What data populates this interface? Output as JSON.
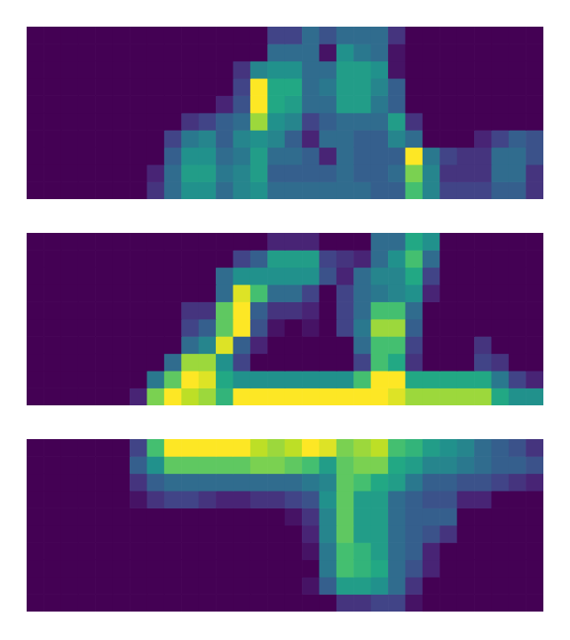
{
  "chart_data": [
    {
      "type": "heatmap",
      "color": "viridis",
      "grid": false,
      "tick_labels": false,
      "cells": [
        [
          0,
          0,
          0,
          0,
          0,
          0,
          0,
          0,
          0,
          0,
          0,
          0,
          0,
          0,
          0.2,
          0.2,
          0.35,
          0.25,
          0.35,
          0.35,
          0.35,
          0.15,
          0,
          0,
          0,
          0,
          0,
          0,
          0,
          0
        ],
        [
          0,
          0,
          0,
          0,
          0,
          0,
          0,
          0,
          0,
          0,
          0,
          0,
          0,
          0,
          0.35,
          0.35,
          0.35,
          0.05,
          0.5,
          0.4,
          0.35,
          0.05,
          0,
          0,
          0,
          0,
          0,
          0,
          0,
          0
        ],
        [
          0,
          0,
          0,
          0,
          0,
          0,
          0,
          0,
          0,
          0,
          0,
          0,
          0.15,
          0.45,
          0.5,
          0.5,
          0.35,
          0.35,
          0.55,
          0.55,
          0.5,
          0.05,
          0,
          0,
          0,
          0,
          0,
          0,
          0,
          0
        ],
        [
          0,
          0,
          0,
          0,
          0,
          0,
          0,
          0,
          0,
          0,
          0,
          0,
          0.2,
          1,
          0.6,
          0.6,
          0.35,
          0.4,
          0.55,
          0.55,
          0.45,
          0.3,
          0,
          0,
          0,
          0,
          0,
          0,
          0,
          0
        ],
        [
          0,
          0,
          0,
          0,
          0,
          0,
          0,
          0,
          0,
          0,
          0,
          0.1,
          0.25,
          1,
          0.6,
          0.55,
          0.35,
          0.35,
          0.55,
          0.55,
          0.4,
          0.3,
          0,
          0,
          0,
          0,
          0,
          0,
          0,
          0
        ],
        [
          0,
          0,
          0,
          0,
          0,
          0,
          0,
          0,
          0,
          0.15,
          0.2,
          0.3,
          0.35,
          0.85,
          0.5,
          0.45,
          0.2,
          0.3,
          0.35,
          0.35,
          0.35,
          0.55,
          0.15,
          0,
          0,
          0,
          0,
          0,
          0,
          0
        ],
        [
          0,
          0,
          0,
          0,
          0,
          0,
          0,
          0,
          0.2,
          0.4,
          0.45,
          0.3,
          0.45,
          0.5,
          0.45,
          0.3,
          0.1,
          0.35,
          0.35,
          0.3,
          0.3,
          0.45,
          0.35,
          0,
          0,
          0,
          0.1,
          0.2,
          0.3,
          0.25
        ],
        [
          0,
          0,
          0,
          0,
          0,
          0,
          0,
          0,
          0.3,
          0.5,
          0.5,
          0.35,
          0.4,
          0.55,
          0.35,
          0.35,
          0.3,
          0.1,
          0.35,
          0.3,
          0.3,
          0.3,
          1,
          0.4,
          0.2,
          0.15,
          0.15,
          0.35,
          0.35,
          0.25
        ],
        [
          0,
          0,
          0,
          0,
          0,
          0,
          0,
          0.1,
          0.35,
          0.55,
          0.55,
          0.4,
          0.45,
          0.55,
          0.3,
          0.3,
          0.3,
          0.3,
          0.35,
          0.3,
          0.3,
          0.35,
          0.8,
          0.45,
          0.15,
          0.15,
          0.15,
          0.35,
          0.35,
          0.15
        ],
        [
          0,
          0,
          0,
          0,
          0,
          0,
          0,
          0.15,
          0.35,
          0.5,
          0.5,
          0.35,
          0.45,
          0.5,
          0.35,
          0.35,
          0.35,
          0.35,
          0.35,
          0.35,
          0.3,
          0.3,
          0.7,
          0.45,
          0.2,
          0.2,
          0.2,
          0.3,
          0.3,
          0.15
        ]
      ]
    },
    {
      "type": "heatmap",
      "color": "viridis",
      "grid": false,
      "tick_labels": false,
      "cells": [
        [
          0,
          0,
          0,
          0,
          0,
          0,
          0,
          0,
          0,
          0,
          0,
          0,
          0,
          0,
          0.1,
          0.1,
          0.1,
          0,
          0,
          0,
          0.35,
          0.35,
          0.6,
          0.5,
          0,
          0,
          0,
          0,
          0,
          0
        ],
        [
          0,
          0,
          0,
          0,
          0,
          0,
          0,
          0,
          0,
          0,
          0,
          0,
          0.2,
          0.3,
          0.55,
          0.55,
          0.55,
          0.2,
          0.15,
          0.1,
          0.35,
          0.5,
          0.7,
          0.35,
          0,
          0,
          0,
          0,
          0,
          0
        ],
        [
          0,
          0,
          0,
          0,
          0,
          0,
          0,
          0,
          0,
          0,
          0,
          0.35,
          0.5,
          0.5,
          0.5,
          0.5,
          0.5,
          0.25,
          0.1,
          0.35,
          0.45,
          0.45,
          0.6,
          0.2,
          0,
          0,
          0,
          0,
          0,
          0
        ],
        [
          0,
          0,
          0,
          0,
          0,
          0,
          0,
          0,
          0,
          0,
          0,
          0.35,
          0.95,
          0.7,
          0.35,
          0.35,
          0.2,
          0,
          0.2,
          0.35,
          0.4,
          0.45,
          0.5,
          0.1,
          0,
          0,
          0,
          0,
          0,
          0
        ],
        [
          0,
          0,
          0,
          0,
          0,
          0,
          0,
          0,
          0,
          0.15,
          0.15,
          0.75,
          1,
          0.3,
          0.15,
          0.15,
          0.1,
          0,
          0.2,
          0.35,
          0.7,
          0.7,
          0.35,
          0,
          0,
          0,
          0,
          0,
          0,
          0
        ],
        [
          0,
          0,
          0,
          0,
          0,
          0,
          0,
          0,
          0,
          0.2,
          0.3,
          0.75,
          1,
          0.25,
          0.05,
          0,
          0.05,
          0,
          0.2,
          0.4,
          0.85,
          0.85,
          0.3,
          0,
          0,
          0,
          0,
          0,
          0,
          0
        ],
        [
          0,
          0,
          0,
          0,
          0,
          0,
          0,
          0,
          0,
          0.35,
          0.45,
          0.95,
          0.3,
          0.1,
          0,
          0,
          0,
          0,
          0,
          0.35,
          0.7,
          0.7,
          0.2,
          0,
          0,
          0,
          0.15,
          0,
          0,
          0
        ],
        [
          0,
          0,
          0,
          0,
          0,
          0,
          0,
          0,
          0.35,
          0.85,
          0.85,
          0.5,
          0.2,
          0,
          0,
          0,
          0,
          0,
          0,
          0.2,
          0.7,
          0.6,
          0.15,
          0,
          0,
          0,
          0.2,
          0.15,
          0,
          0
        ],
        [
          0,
          0,
          0,
          0,
          0,
          0,
          0,
          0.4,
          0.75,
          1,
          0.95,
          0.6,
          0.5,
          0.5,
          0.5,
          0.5,
          0.5,
          0.5,
          0.5,
          0.7,
          1,
          1,
          0.6,
          0.6,
          0.6,
          0.6,
          0.6,
          0.4,
          0.2,
          0.1
        ],
        [
          0,
          0,
          0,
          0,
          0,
          0,
          0.1,
          0.8,
          1,
          0.9,
          0.85,
          0.65,
          1,
          1,
          1,
          1,
          1,
          1,
          1,
          1,
          1,
          0.95,
          0.85,
          0.85,
          0.85,
          0.85,
          0.85,
          0.6,
          0.5,
          0.5
        ]
      ]
    },
    {
      "type": "heatmap",
      "color": "viridis",
      "grid": false,
      "tick_labels": false,
      "cells": [
        [
          0,
          0,
          0,
          0,
          0,
          0,
          0.2,
          0.7,
          1,
          1,
          1,
          1,
          1,
          0.9,
          0.85,
          0.9,
          1,
          0.95,
          0.8,
          0.85,
          0.9,
          0.7,
          0.65,
          0.55,
          0.5,
          0.45,
          0.35,
          0.3,
          0.25,
          0.15
        ],
        [
          0,
          0,
          0,
          0,
          0,
          0,
          0.3,
          0.5,
          0.75,
          0.75,
          0.75,
          0.75,
          0.75,
          0.8,
          0.8,
          0.75,
          0.7,
          0.55,
          0.75,
          0.8,
          0.8,
          0.6,
          0.55,
          0.45,
          0.45,
          0.4,
          0.35,
          0.3,
          0.3,
          0.25
        ],
        [
          0,
          0,
          0,
          0,
          0,
          0,
          0.15,
          0.3,
          0.35,
          0.35,
          0.35,
          0.35,
          0.35,
          0.35,
          0.35,
          0.35,
          0.4,
          0.45,
          0.75,
          0.7,
          0.6,
          0.55,
          0.4,
          0.3,
          0.3,
          0.25,
          0.25,
          0.2,
          0.15,
          0.1
        ],
        [
          0,
          0,
          0,
          0,
          0,
          0,
          0.05,
          0.15,
          0.2,
          0.2,
          0.15,
          0.1,
          0.1,
          0.15,
          0.15,
          0.2,
          0.25,
          0.5,
          0.75,
          0.55,
          0.55,
          0.35,
          0.3,
          0.25,
          0.25,
          0.1,
          0.1,
          0,
          0,
          0
        ],
        [
          0,
          0,
          0,
          0,
          0,
          0,
          0,
          0,
          0,
          0,
          0,
          0,
          0,
          0,
          0,
          0.05,
          0.15,
          0.45,
          0.75,
          0.55,
          0.55,
          0.35,
          0.3,
          0.3,
          0.3,
          0,
          0,
          0,
          0,
          0
        ],
        [
          0,
          0,
          0,
          0,
          0,
          0,
          0,
          0,
          0,
          0,
          0,
          0,
          0,
          0,
          0,
          0,
          0.1,
          0.45,
          0.75,
          0.55,
          0.55,
          0.35,
          0.3,
          0.25,
          0.15,
          0,
          0,
          0,
          0,
          0
        ],
        [
          0,
          0,
          0,
          0,
          0,
          0,
          0,
          0,
          0,
          0,
          0,
          0,
          0,
          0,
          0,
          0,
          0.05,
          0.4,
          0.7,
          0.65,
          0.55,
          0.35,
          0.3,
          0.1,
          0,
          0,
          0,
          0,
          0,
          0
        ],
        [
          0,
          0,
          0,
          0,
          0,
          0,
          0,
          0,
          0,
          0,
          0,
          0,
          0,
          0,
          0,
          0,
          0,
          0.4,
          0.7,
          0.65,
          0.6,
          0.35,
          0.25,
          0.1,
          0,
          0,
          0,
          0,
          0,
          0
        ],
        [
          0,
          0,
          0,
          0,
          0,
          0,
          0,
          0,
          0,
          0,
          0,
          0,
          0,
          0,
          0,
          0,
          0.05,
          0.3,
          0.55,
          0.55,
          0.5,
          0.35,
          0.15,
          0,
          0,
          0,
          0,
          0,
          0,
          0
        ],
        [
          0,
          0,
          0,
          0,
          0,
          0,
          0,
          0,
          0,
          0,
          0,
          0,
          0,
          0,
          0,
          0,
          0,
          0,
          0.15,
          0.15,
          0.2,
          0.2,
          0.05,
          0,
          0,
          0,
          0,
          0,
          0,
          0
        ]
      ]
    }
  ]
}
